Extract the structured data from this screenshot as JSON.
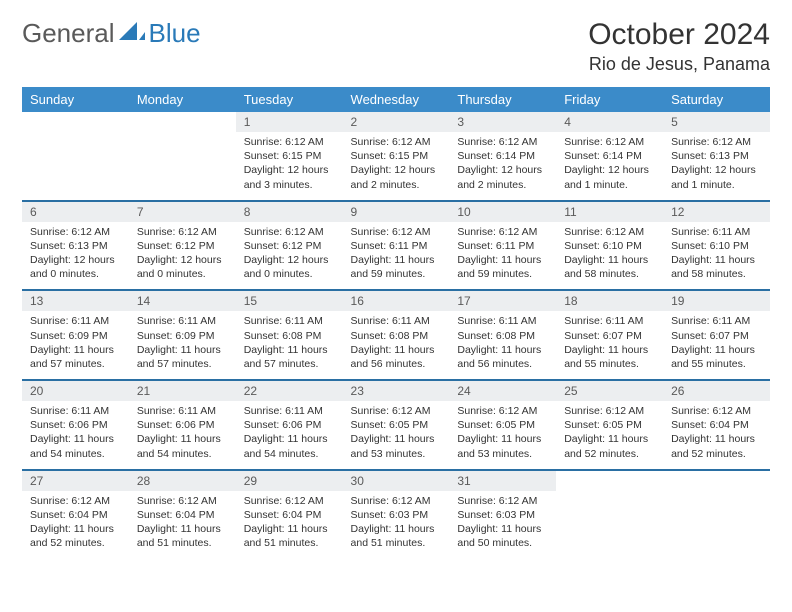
{
  "logo": {
    "text_a": "General",
    "text_b": "Blue"
  },
  "title": "October 2024",
  "location": "Rio de Jesus, Panama",
  "colors": {
    "header_bg": "#3b8bc9",
    "rule": "#2a6fa3",
    "daybg": "#eceef0"
  },
  "day_headers": [
    "Sunday",
    "Monday",
    "Tuesday",
    "Wednesday",
    "Thursday",
    "Friday",
    "Saturday"
  ],
  "weeks": [
    [
      null,
      null,
      {
        "n": "1",
        "sr": "6:12 AM",
        "ss": "6:15 PM",
        "dl": "12 hours and 3 minutes."
      },
      {
        "n": "2",
        "sr": "6:12 AM",
        "ss": "6:15 PM",
        "dl": "12 hours and 2 minutes."
      },
      {
        "n": "3",
        "sr": "6:12 AM",
        "ss": "6:14 PM",
        "dl": "12 hours and 2 minutes."
      },
      {
        "n": "4",
        "sr": "6:12 AM",
        "ss": "6:14 PM",
        "dl": "12 hours and 1 minute."
      },
      {
        "n": "5",
        "sr": "6:12 AM",
        "ss": "6:13 PM",
        "dl": "12 hours and 1 minute."
      }
    ],
    [
      {
        "n": "6",
        "sr": "6:12 AM",
        "ss": "6:13 PM",
        "dl": "12 hours and 0 minutes."
      },
      {
        "n": "7",
        "sr": "6:12 AM",
        "ss": "6:12 PM",
        "dl": "12 hours and 0 minutes."
      },
      {
        "n": "8",
        "sr": "6:12 AM",
        "ss": "6:12 PM",
        "dl": "12 hours and 0 minutes."
      },
      {
        "n": "9",
        "sr": "6:12 AM",
        "ss": "6:11 PM",
        "dl": "11 hours and 59 minutes."
      },
      {
        "n": "10",
        "sr": "6:12 AM",
        "ss": "6:11 PM",
        "dl": "11 hours and 59 minutes."
      },
      {
        "n": "11",
        "sr": "6:12 AM",
        "ss": "6:10 PM",
        "dl": "11 hours and 58 minutes."
      },
      {
        "n": "12",
        "sr": "6:11 AM",
        "ss": "6:10 PM",
        "dl": "11 hours and 58 minutes."
      }
    ],
    [
      {
        "n": "13",
        "sr": "6:11 AM",
        "ss": "6:09 PM",
        "dl": "11 hours and 57 minutes."
      },
      {
        "n": "14",
        "sr": "6:11 AM",
        "ss": "6:09 PM",
        "dl": "11 hours and 57 minutes."
      },
      {
        "n": "15",
        "sr": "6:11 AM",
        "ss": "6:08 PM",
        "dl": "11 hours and 57 minutes."
      },
      {
        "n": "16",
        "sr": "6:11 AM",
        "ss": "6:08 PM",
        "dl": "11 hours and 56 minutes."
      },
      {
        "n": "17",
        "sr": "6:11 AM",
        "ss": "6:08 PM",
        "dl": "11 hours and 56 minutes."
      },
      {
        "n": "18",
        "sr": "6:11 AM",
        "ss": "6:07 PM",
        "dl": "11 hours and 55 minutes."
      },
      {
        "n": "19",
        "sr": "6:11 AM",
        "ss": "6:07 PM",
        "dl": "11 hours and 55 minutes."
      }
    ],
    [
      {
        "n": "20",
        "sr": "6:11 AM",
        "ss": "6:06 PM",
        "dl": "11 hours and 54 minutes."
      },
      {
        "n": "21",
        "sr": "6:11 AM",
        "ss": "6:06 PM",
        "dl": "11 hours and 54 minutes."
      },
      {
        "n": "22",
        "sr": "6:11 AM",
        "ss": "6:06 PM",
        "dl": "11 hours and 54 minutes."
      },
      {
        "n": "23",
        "sr": "6:12 AM",
        "ss": "6:05 PM",
        "dl": "11 hours and 53 minutes."
      },
      {
        "n": "24",
        "sr": "6:12 AM",
        "ss": "6:05 PM",
        "dl": "11 hours and 53 minutes."
      },
      {
        "n": "25",
        "sr": "6:12 AM",
        "ss": "6:05 PM",
        "dl": "11 hours and 52 minutes."
      },
      {
        "n": "26",
        "sr": "6:12 AM",
        "ss": "6:04 PM",
        "dl": "11 hours and 52 minutes."
      }
    ],
    [
      {
        "n": "27",
        "sr": "6:12 AM",
        "ss": "6:04 PM",
        "dl": "11 hours and 52 minutes."
      },
      {
        "n": "28",
        "sr": "6:12 AM",
        "ss": "6:04 PM",
        "dl": "11 hours and 51 minutes."
      },
      {
        "n": "29",
        "sr": "6:12 AM",
        "ss": "6:04 PM",
        "dl": "11 hours and 51 minutes."
      },
      {
        "n": "30",
        "sr": "6:12 AM",
        "ss": "6:03 PM",
        "dl": "11 hours and 51 minutes."
      },
      {
        "n": "31",
        "sr": "6:12 AM",
        "ss": "6:03 PM",
        "dl": "11 hours and 50 minutes."
      },
      null,
      null
    ]
  ],
  "labels": {
    "sunrise": "Sunrise:",
    "sunset": "Sunset:",
    "daylight": "Daylight:"
  }
}
